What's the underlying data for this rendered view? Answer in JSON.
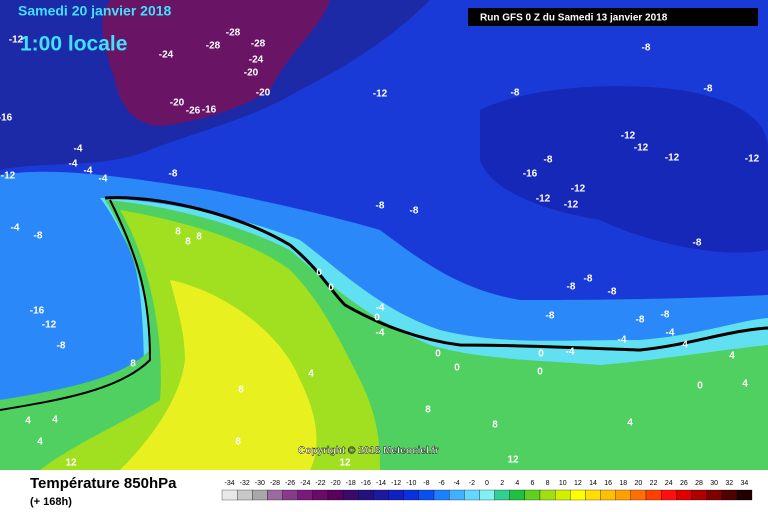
{
  "header": {
    "date": "Samedi 20 janvier 2018",
    "time": "1:00 locale",
    "run": "Run GFS 0 Z du Samedi 13 janvier 2018"
  },
  "copyright": "Copyright © 2018 Meteociel.fr",
  "footer": {
    "title": "Température 850hPa",
    "subtitle": "(+ 168h)"
  },
  "legend": {
    "values": [
      -34,
      -32,
      -30,
      -28,
      -26,
      -24,
      -22,
      -20,
      -18,
      -16,
      -14,
      -12,
      -10,
      -8,
      -6,
      -4,
      -2,
      0,
      2,
      4,
      6,
      8,
      10,
      12,
      14,
      16,
      18,
      20,
      22,
      24,
      26,
      28,
      30,
      32,
      34
    ],
    "colors": [
      "#e8e8e8",
      "#c8c8c8",
      "#a8a8a8",
      "#9a6aa0",
      "#8a3a8a",
      "#7a1a7a",
      "#6a0a6a",
      "#5a0060",
      "#3a0a6a",
      "#241080",
      "#1a1aa0",
      "#1020c0",
      "#0a30e0",
      "#0a50f0",
      "#1a80ff",
      "#40b0ff",
      "#60d8ff",
      "#80f0f0",
      "#30d090",
      "#20c040",
      "#60d020",
      "#a0e010",
      "#d0f000",
      "#ffff00",
      "#ffe000",
      "#ffc000",
      "#ffa000",
      "#ff7000",
      "#ff4000",
      "#ff1010",
      "#e00000",
      "#b00000",
      "#800000",
      "#500000",
      "#200000"
    ]
  },
  "map_labels": [
    "-12",
    "-24",
    "-28",
    "-28",
    "-28",
    "-24",
    "-20",
    "-20",
    "-20",
    "-26",
    "-16",
    "-16",
    "-12",
    "-4",
    "-4",
    "-4",
    "-4",
    "-8",
    "-12",
    "-8",
    "-8",
    "-8",
    "-8",
    "-12",
    "-12",
    "-12",
    "-12",
    "-16",
    "-12",
    "-12",
    "-12",
    "-8",
    "-8",
    "-4",
    "-8",
    "8",
    "8",
    "8",
    "-8",
    "-16",
    "-12",
    "-8",
    "0",
    "0",
    "-8",
    "-8",
    "-8",
    "-4",
    "0",
    "-4",
    "-8",
    "-8",
    "-8",
    "-4",
    "-4",
    "-4",
    "0",
    "4",
    "4",
    "8",
    "4",
    "0",
    "0",
    "0",
    "0",
    "4",
    "8",
    "4",
    "4",
    "8",
    "8",
    "4",
    "8",
    "4",
    "12",
    "12",
    "12"
  ]
}
